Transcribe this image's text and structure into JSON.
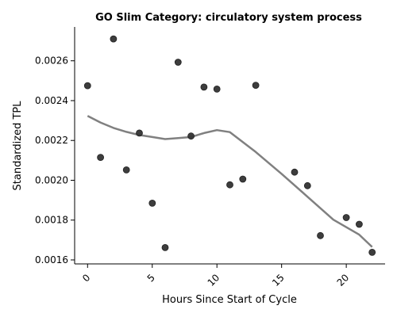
{
  "chart_data": {
    "type": "scatter",
    "title": "GO Slim Category: circulatory system process",
    "xlabel": "Hours Since Start of Cycle",
    "ylabel": "Standardized TPL",
    "xlim": [
      -1,
      23
    ],
    "ylim": [
      0.00158,
      0.00277
    ],
    "xticks": [
      0,
      5,
      10,
      15,
      20
    ],
    "yticks": [
      0.0016,
      0.0018,
      0.002,
      0.0022,
      0.0024,
      0.0026
    ],
    "ytick_labels": [
      "0.0016",
      "0.0018",
      "0.0020",
      "0.0022",
      "0.0024",
      "0.0026"
    ],
    "points": [
      {
        "x": 0,
        "y": 0.002475
      },
      {
        "x": 1,
        "y": 0.002115
      },
      {
        "x": 2,
        "y": 0.00271
      },
      {
        "x": 3,
        "y": 0.002052
      },
      {
        "x": 4,
        "y": 0.002237
      },
      {
        "x": 5,
        "y": 0.001885
      },
      {
        "x": 6,
        "y": 0.001662
      },
      {
        "x": 7,
        "y": 0.002593
      },
      {
        "x": 8,
        "y": 0.002222
      },
      {
        "x": 9,
        "y": 0.002468
      },
      {
        "x": 10,
        "y": 0.002458
      },
      {
        "x": 11,
        "y": 0.001977
      },
      {
        "x": 12,
        "y": 0.002006
      },
      {
        "x": 13,
        "y": 0.002477
      },
      {
        "x": 16,
        "y": 0.002041
      },
      {
        "x": 17,
        "y": 0.001973
      },
      {
        "x": 18,
        "y": 0.001722
      },
      {
        "x": 20,
        "y": 0.001813
      },
      {
        "x": 21,
        "y": 0.001779
      },
      {
        "x": 22,
        "y": 0.001638
      }
    ],
    "trend": [
      {
        "x": 0,
        "y": 0.002323
      },
      {
        "x": 1,
        "y": 0.00229
      },
      {
        "x": 2,
        "y": 0.002263
      },
      {
        "x": 3,
        "y": 0.002243
      },
      {
        "x": 4,
        "y": 0.002227
      },
      {
        "x": 5,
        "y": 0.002217
      },
      {
        "x": 6,
        "y": 0.002207
      },
      {
        "x": 7,
        "y": 0.002212
      },
      {
        "x": 8,
        "y": 0.002217
      },
      {
        "x": 9,
        "y": 0.002237
      },
      {
        "x": 10,
        "y": 0.002252
      },
      {
        "x": 11,
        "y": 0.002242
      },
      {
        "x": 13,
        "y": 0.002142
      },
      {
        "x": 15,
        "y": 0.002032
      },
      {
        "x": 17,
        "y": 0.001917
      },
      {
        "x": 19,
        "y": 0.001802
      },
      {
        "x": 21,
        "y": 0.001727
      },
      {
        "x": 22,
        "y": 0.001665
      }
    ],
    "grid": false,
    "colors": {
      "points": "#333333",
      "trend": "#808080"
    }
  }
}
